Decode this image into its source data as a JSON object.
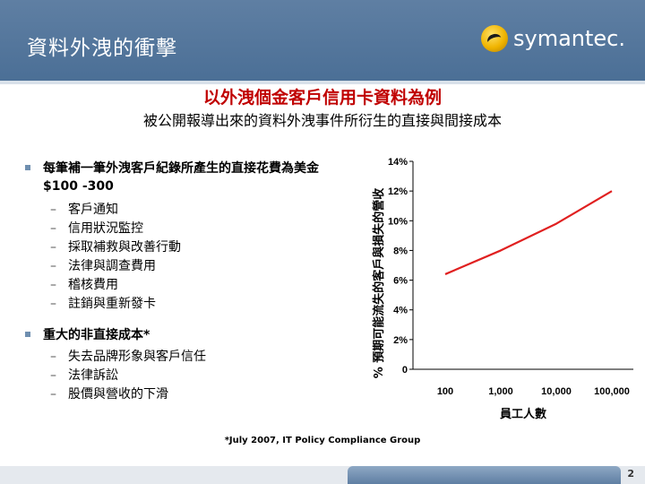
{
  "header": {
    "title": "資料外洩的衝擊",
    "logo_text": "symantec.",
    "colors": {
      "bar": "#4b6f96",
      "logo_yellow": "#f0b400"
    }
  },
  "headline": "以外洩個金客戶信用卡資料為例",
  "subheadline": "被公開報導出來的資料外洩事件所衍生的直接與間接成本",
  "direct_costs": {
    "title": "每筆補一筆外洩客戶紀錄所產生的直接花費為美金 $100 -300",
    "items": [
      "客戶通知",
      "信用狀況監控",
      "採取補救與改善行動",
      "法律與調查費用",
      "稽核費用",
      "註銷與重新發卡"
    ]
  },
  "indirect_costs": {
    "title": "重大的非直接成本*",
    "items": [
      "失去品牌形象與客戶信任",
      "法律訴訟",
      "股價與營收的下滑"
    ]
  },
  "chart_data": {
    "type": "line",
    "ylabel": "% 預期可能流失的客戶與損失的營收",
    "xlabel": "員工人數",
    "categories": [
      "100",
      "1,000",
      "10,000",
      "100,000"
    ],
    "x": [
      100,
      1000,
      10000,
      100000
    ],
    "x_scale": "log",
    "series": [
      {
        "values": [
          6.4,
          8.0,
          9.8,
          12.0
        ],
        "color": "#e02020"
      }
    ],
    "ylim": [
      0,
      14
    ],
    "yticks": [
      "0",
      "2%",
      "4%",
      "6%",
      "8%",
      "10%",
      "12%",
      "14%"
    ],
    "grid": false
  },
  "footnote": "*July 2007, IT Policy Compliance Group",
  "page_number": "2"
}
